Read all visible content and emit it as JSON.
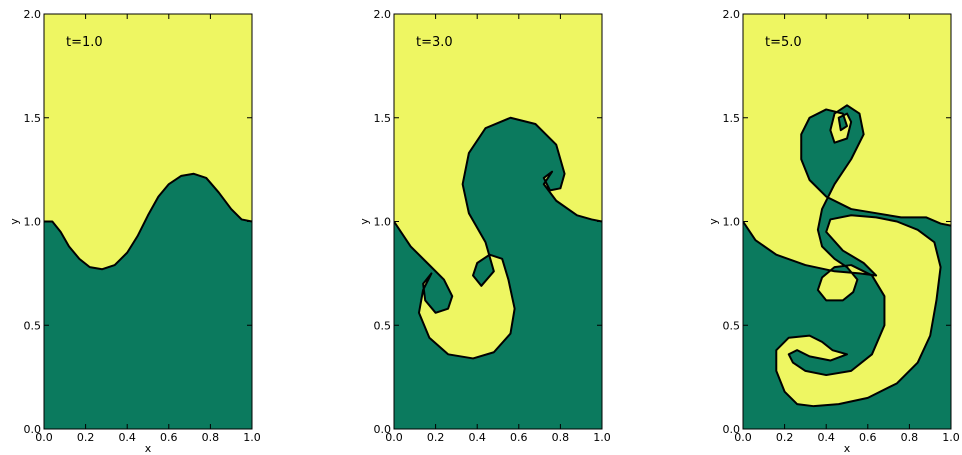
{
  "colors": {
    "upper_fluid": "#eef662",
    "lower_fluid": "#0b7a5e",
    "interface": "#000000"
  },
  "chart_data": [
    {
      "type": "heatmap",
      "annotation": "t=1.0",
      "xlabel": "x",
      "ylabel": "y",
      "xlim": [
        0.0,
        1.0
      ],
      "ylim": [
        0.0,
        2.0
      ],
      "xticks": [
        "0.0",
        "0.2",
        "0.4",
        "0.6",
        "0.8",
        "1.0"
      ],
      "yticks": [
        "0.0",
        "0.5",
        "1.0",
        "1.5",
        "2.0"
      ],
      "interface": [
        [
          0.0,
          1.0
        ],
        [
          0.04,
          1.0
        ],
        [
          0.08,
          0.95
        ],
        [
          0.12,
          0.88
        ],
        [
          0.17,
          0.82
        ],
        [
          0.22,
          0.78
        ],
        [
          0.28,
          0.77
        ],
        [
          0.34,
          0.79
        ],
        [
          0.4,
          0.85
        ],
        [
          0.45,
          0.93
        ],
        [
          0.5,
          1.03
        ],
        [
          0.55,
          1.12
        ],
        [
          0.6,
          1.18
        ],
        [
          0.66,
          1.22
        ],
        [
          0.72,
          1.23
        ],
        [
          0.78,
          1.21
        ],
        [
          0.84,
          1.14
        ],
        [
          0.9,
          1.06
        ],
        [
          0.95,
          1.01
        ],
        [
          1.0,
          1.0
        ]
      ]
    },
    {
      "type": "heatmap",
      "annotation": "t=3.0",
      "xlabel": "",
      "ylabel": "y",
      "xlim": [
        0.0,
        1.0
      ],
      "ylim": [
        0.0,
        2.0
      ],
      "xticks": [
        "0.0",
        "0.2",
        "0.4",
        "0.6",
        "0.8",
        "1.0"
      ],
      "yticks": [
        "0.0",
        "0.5",
        "1.0",
        "1.5",
        "2.0"
      ],
      "interface": [
        [
          0.0,
          1.0
        ],
        [
          0.08,
          0.88
        ],
        [
          0.16,
          0.8
        ],
        [
          0.24,
          0.72
        ],
        [
          0.28,
          0.64
        ],
        [
          0.26,
          0.58
        ],
        [
          0.2,
          0.56
        ],
        [
          0.15,
          0.62
        ],
        [
          0.14,
          0.7
        ],
        [
          0.18,
          0.75
        ],
        [
          0.14,
          0.67
        ],
        [
          0.12,
          0.56
        ],
        [
          0.17,
          0.44
        ],
        [
          0.26,
          0.36
        ],
        [
          0.38,
          0.34
        ],
        [
          0.48,
          0.37
        ],
        [
          0.56,
          0.46
        ],
        [
          0.58,
          0.58
        ],
        [
          0.55,
          0.72
        ],
        [
          0.52,
          0.82
        ],
        [
          0.46,
          0.84
        ],
        [
          0.4,
          0.8
        ],
        [
          0.38,
          0.74
        ],
        [
          0.42,
          0.69
        ],
        [
          0.48,
          0.76
        ],
        [
          0.44,
          0.9
        ],
        [
          0.36,
          1.04
        ],
        [
          0.33,
          1.18
        ],
        [
          0.36,
          1.33
        ],
        [
          0.44,
          1.45
        ],
        [
          0.56,
          1.5
        ],
        [
          0.68,
          1.47
        ],
        [
          0.78,
          1.37
        ],
        [
          0.82,
          1.23
        ],
        [
          0.8,
          1.16
        ],
        [
          0.75,
          1.15
        ],
        [
          0.72,
          1.21
        ],
        [
          0.76,
          1.24
        ],
        [
          0.72,
          1.18
        ],
        [
          0.78,
          1.1
        ],
        [
          0.88,
          1.03
        ],
        [
          0.95,
          1.01
        ],
        [
          1.0,
          1.0
        ]
      ]
    },
    {
      "type": "heatmap",
      "annotation": "t=5.0",
      "xlabel": "x",
      "ylabel": "y",
      "xlim": [
        0.0,
        1.0
      ],
      "ylim": [
        0.0,
        2.0
      ],
      "xticks": [
        "0.0",
        "0.2",
        "0.4",
        "0.6",
        "0.8",
        "1.0"
      ],
      "yticks": [
        "0.0",
        "0.5",
        "1.0",
        "1.5",
        "2.0"
      ],
      "interface": [
        [
          0.0,
          1.0
        ],
        [
          0.06,
          0.91
        ],
        [
          0.16,
          0.84
        ],
        [
          0.3,
          0.79
        ],
        [
          0.44,
          0.76
        ],
        [
          0.56,
          0.75
        ],
        [
          0.64,
          0.74
        ],
        [
          0.58,
          0.8
        ],
        [
          0.48,
          0.86
        ],
        [
          0.4,
          0.95
        ],
        [
          0.42,
          1.01
        ],
        [
          0.52,
          1.03
        ],
        [
          0.64,
          1.02
        ],
        [
          0.74,
          1.0
        ],
        [
          0.84,
          0.96
        ],
        [
          0.92,
          0.9
        ],
        [
          0.95,
          0.78
        ],
        [
          0.93,
          0.62
        ],
        [
          0.9,
          0.45
        ],
        [
          0.84,
          0.32
        ],
        [
          0.74,
          0.22
        ],
        [
          0.6,
          0.15
        ],
        [
          0.46,
          0.12
        ],
        [
          0.34,
          0.11
        ],
        [
          0.26,
          0.12
        ],
        [
          0.2,
          0.18
        ],
        [
          0.16,
          0.28
        ],
        [
          0.16,
          0.38
        ],
        [
          0.22,
          0.44
        ],
        [
          0.32,
          0.45
        ],
        [
          0.38,
          0.42
        ],
        [
          0.43,
          0.38
        ],
        [
          0.5,
          0.36
        ],
        [
          0.42,
          0.33
        ],
        [
          0.32,
          0.35
        ],
        [
          0.26,
          0.38
        ],
        [
          0.22,
          0.36
        ],
        [
          0.24,
          0.32
        ],
        [
          0.3,
          0.28
        ],
        [
          0.4,
          0.26
        ],
        [
          0.52,
          0.28
        ],
        [
          0.62,
          0.36
        ],
        [
          0.68,
          0.5
        ],
        [
          0.68,
          0.64
        ],
        [
          0.62,
          0.74
        ],
        [
          0.52,
          0.79
        ],
        [
          0.44,
          0.78
        ],
        [
          0.38,
          0.73
        ],
        [
          0.36,
          0.67
        ],
        [
          0.4,
          0.62
        ],
        [
          0.48,
          0.62
        ],
        [
          0.53,
          0.66
        ],
        [
          0.55,
          0.72
        ],
        [
          0.5,
          0.78
        ],
        [
          0.44,
          0.82
        ],
        [
          0.38,
          0.88
        ],
        [
          0.36,
          0.96
        ],
        [
          0.38,
          1.06
        ],
        [
          0.44,
          1.18
        ],
        [
          0.52,
          1.3
        ],
        [
          0.58,
          1.42
        ],
        [
          0.56,
          1.52
        ],
        [
          0.5,
          1.56
        ],
        [
          0.44,
          1.52
        ],
        [
          0.42,
          1.44
        ],
        [
          0.44,
          1.38
        ],
        [
          0.5,
          1.4
        ],
        [
          0.52,
          1.48
        ],
        [
          0.5,
          1.52
        ],
        [
          0.46,
          1.5
        ],
        [
          0.47,
          1.44
        ],
        [
          0.5,
          1.46
        ],
        [
          0.48,
          1.52
        ],
        [
          0.4,
          1.54
        ],
        [
          0.32,
          1.5
        ],
        [
          0.28,
          1.42
        ],
        [
          0.28,
          1.3
        ],
        [
          0.32,
          1.2
        ],
        [
          0.4,
          1.12
        ],
        [
          0.52,
          1.06
        ],
        [
          0.64,
          1.04
        ],
        [
          0.76,
          1.02
        ],
        [
          0.88,
          1.02
        ],
        [
          0.95,
          0.99
        ],
        [
          1.0,
          0.98
        ]
      ]
    }
  ]
}
